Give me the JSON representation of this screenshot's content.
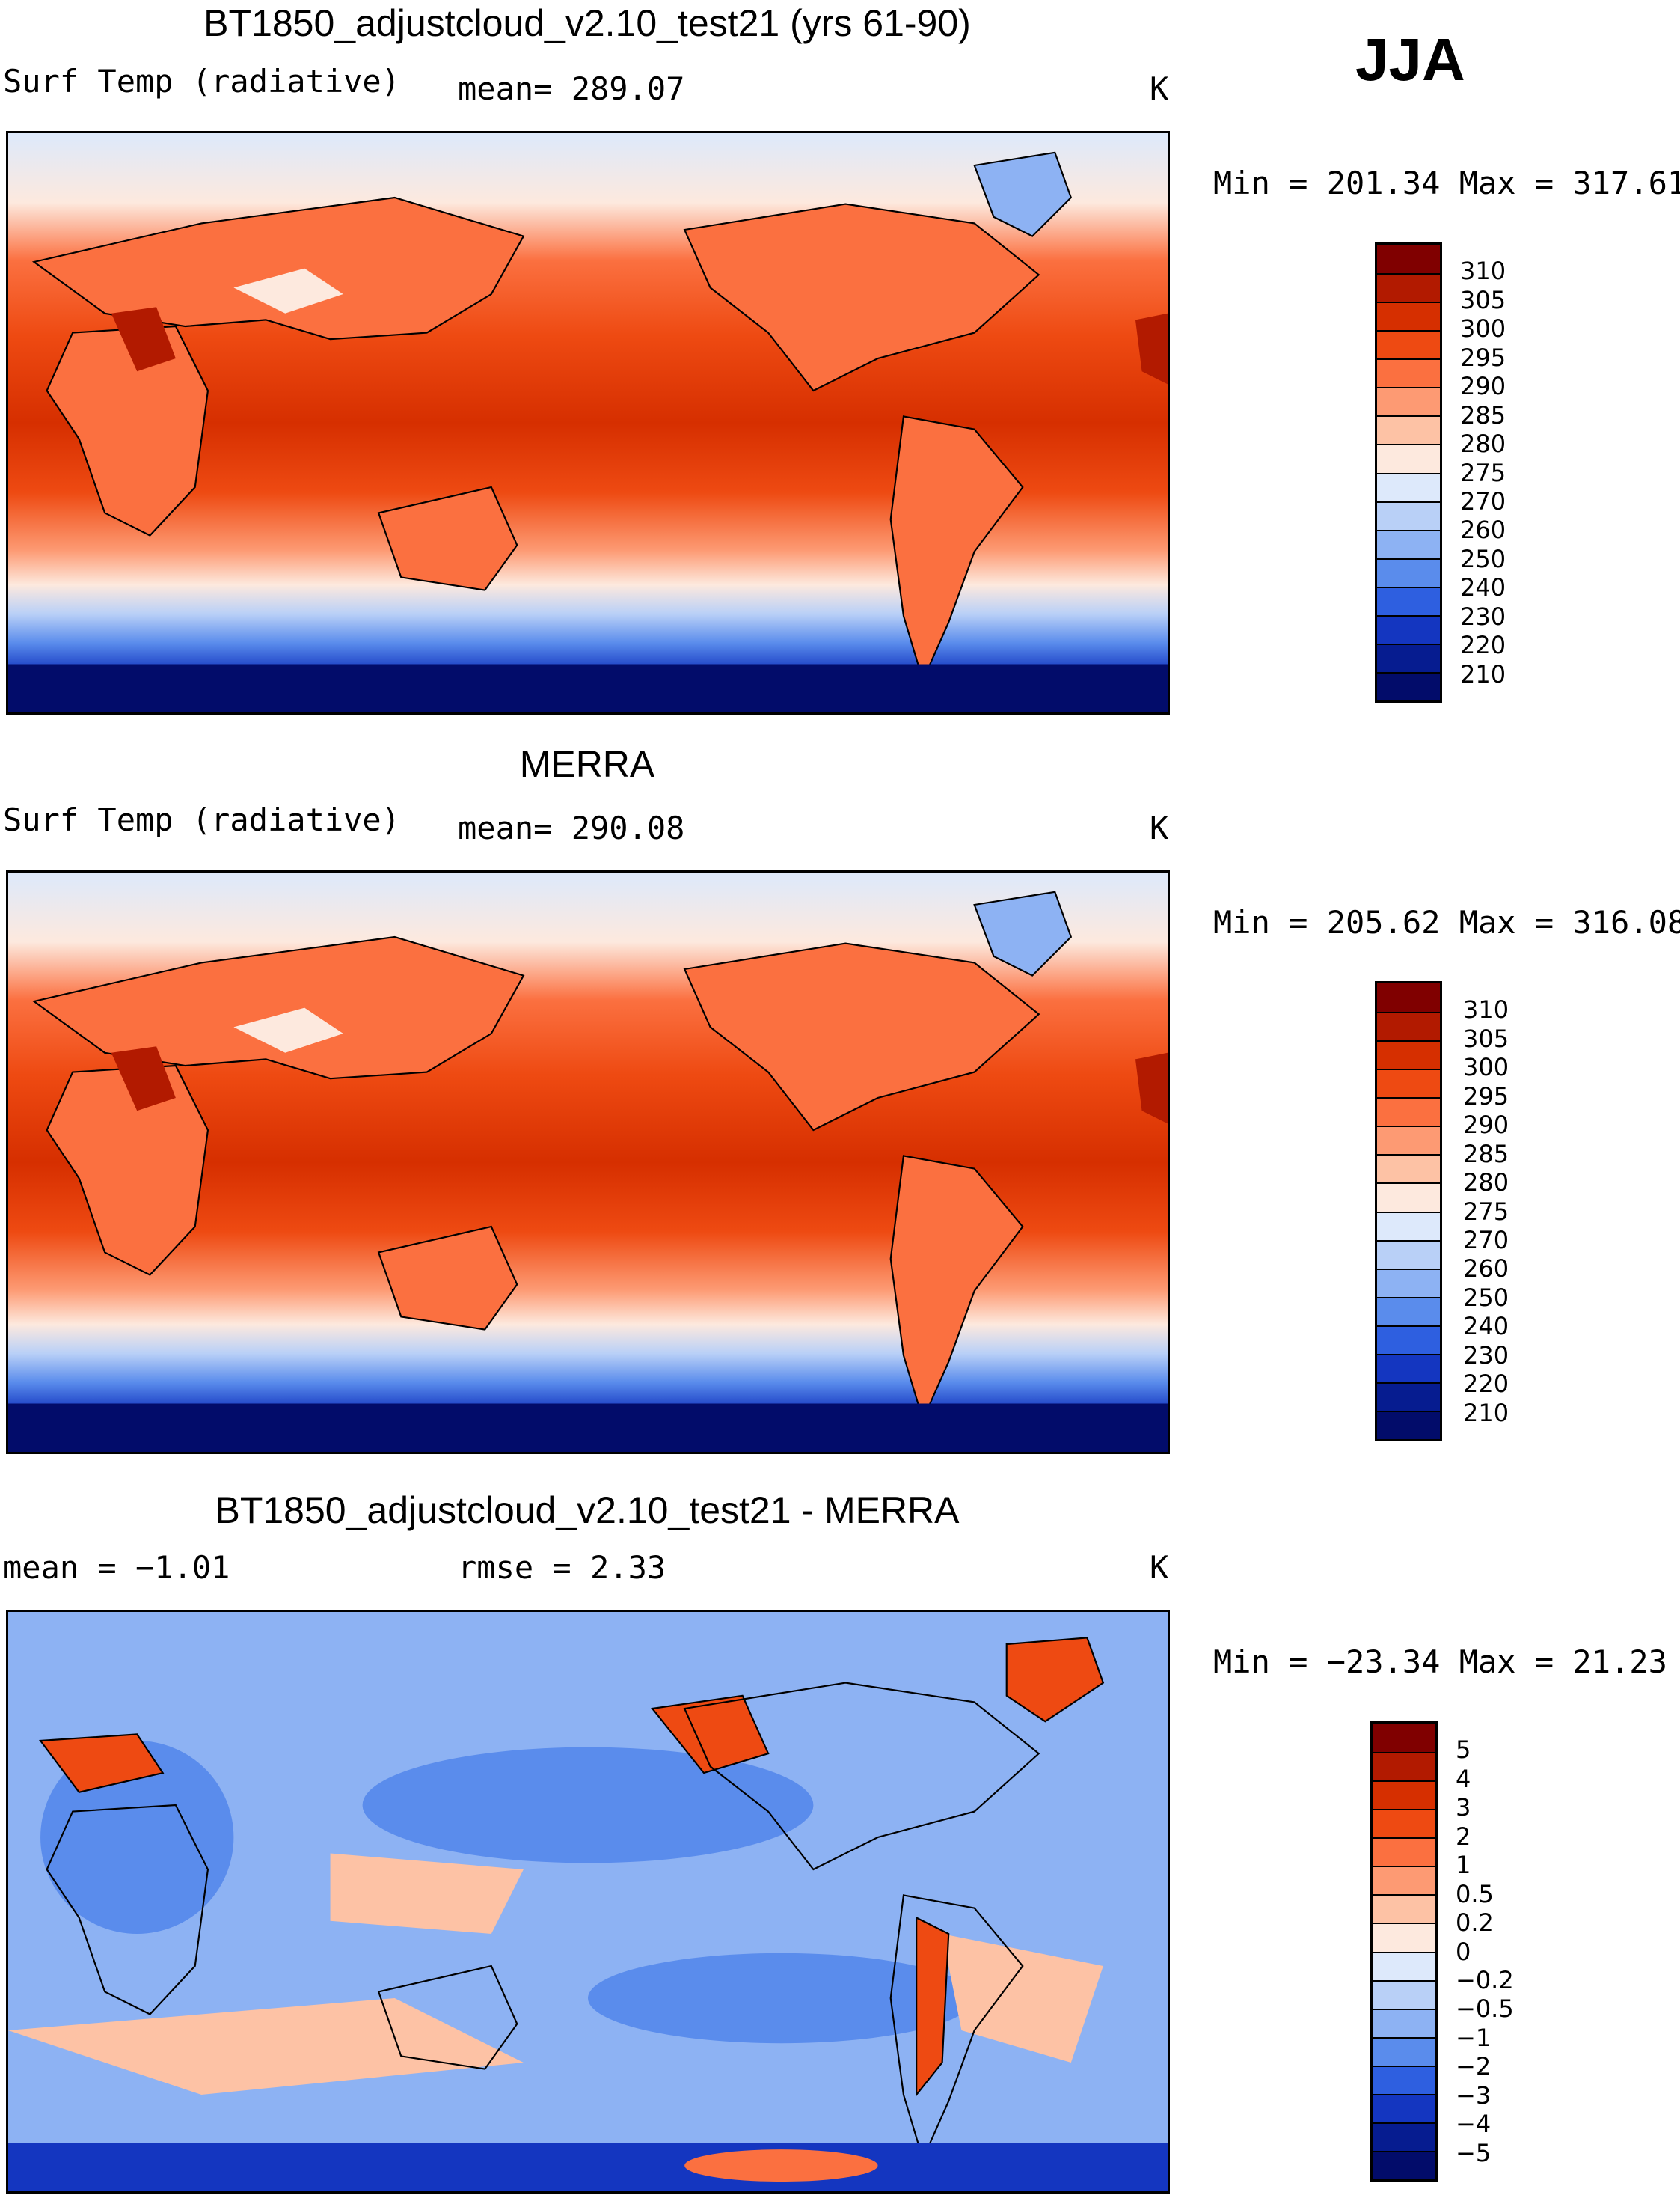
{
  "season": "JJA",
  "units": "K",
  "panels": [
    {
      "title": "BT1850_adjustcloud_v2.10_test21 (yrs 61-90)",
      "variable": "Surf Temp (radiative)",
      "stat_text": "mean= 289.07",
      "range_text": "Min = 201.34 Max = 317.61",
      "colorbar_labels": [
        "310",
        "305",
        "300",
        "295",
        "290",
        "285",
        "280",
        "275",
        "270",
        "260",
        "250",
        "240",
        "230",
        "220",
        "210"
      ],
      "colorbar_colors": [
        "#800000",
        "#b21a00",
        "#d62f00",
        "#ee4a12",
        "#fb7040",
        "#fd9a73",
        "#fdc2a5",
        "#fde9de",
        "#dde9fb",
        "#b9d0f7",
        "#8db2f3",
        "#5a8cec",
        "#2e5fe0",
        "#1436c0",
        "#061c90",
        "#020c6a"
      ]
    },
    {
      "title": "MERRA",
      "variable": "Surf Temp (radiative)",
      "stat_text": "mean= 290.08",
      "range_text": "Min = 205.62 Max = 316.08",
      "colorbar_labels": [
        "310",
        "305",
        "300",
        "295",
        "290",
        "285",
        "280",
        "275",
        "270",
        "260",
        "250",
        "240",
        "230",
        "220",
        "210"
      ],
      "colorbar_colors": [
        "#800000",
        "#b21a00",
        "#d62f00",
        "#ee4a12",
        "#fb7040",
        "#fd9a73",
        "#fdc2a5",
        "#fde9de",
        "#dde9fb",
        "#b9d0f7",
        "#8db2f3",
        "#5a8cec",
        "#2e5fe0",
        "#1436c0",
        "#061c90",
        "#020c6a"
      ]
    },
    {
      "title": "BT1850_adjustcloud_v2.10_test21 - MERRA",
      "stat_text": "mean =  −1.01",
      "rmse_text": "rmse =   2.33",
      "range_text": "Min = −23.34 Max =  21.23",
      "colorbar_labels": [
        "5",
        "4",
        "3",
        "2",
        "1",
        "0.5",
        "0.2",
        "0",
        "−0.2",
        "−0.5",
        "−1",
        "−2",
        "−3",
        "−4",
        "−5"
      ],
      "colorbar_colors": [
        "#800000",
        "#b21a00",
        "#d62f00",
        "#ee4a12",
        "#fb7040",
        "#fd9a73",
        "#fdc2a5",
        "#fde9de",
        "#dde9fb",
        "#b9d0f7",
        "#8db2f3",
        "#5a8cec",
        "#2e5fe0",
        "#1436c0",
        "#061c90",
        "#020c6a"
      ]
    }
  ]
}
